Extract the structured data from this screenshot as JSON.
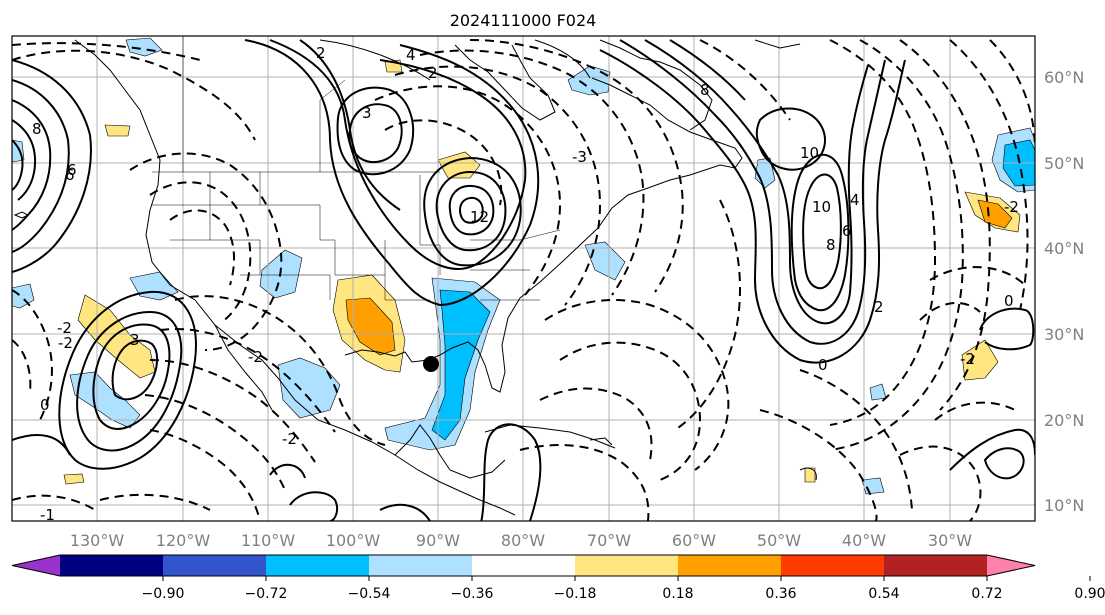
{
  "title": "2024111000 F024",
  "map": {
    "lat_labels": [
      "60°N",
      "50°N",
      "40°N",
      "30°N",
      "20°N",
      "10°N"
    ],
    "lon_labels": [
      "130°W",
      "120°W",
      "110°W",
      "100°W",
      "90°W",
      "80°W",
      "70°W",
      "60°W",
      "50°W",
      "40°W",
      "30°W"
    ],
    "contour_labels": [
      "2",
      "3",
      "4",
      "6",
      "8",
      "10",
      "12",
      "-2",
      "-3",
      "-2",
      "-1",
      "0",
      "3",
      "6",
      "-2",
      "-2",
      "8",
      "2",
      "10",
      "8",
      "6",
      "4",
      "2",
      "0",
      "-2",
      "-2",
      "0"
    ],
    "storm_marker": {
      "symbol": "filled-circle",
      "color": "#000000",
      "lat": 26.5,
      "lon": -90.5
    }
  },
  "colorbar": {
    "tick_labels": [
      "−0.90",
      "−0.72",
      "−0.54",
      "−0.36",
      "−0.18",
      "0.18",
      "0.36",
      "0.54",
      "0.72",
      "0.90"
    ],
    "colors": [
      "#9933cc",
      "#000080",
      "#3355cc",
      "#00bfff",
      "#aee0ff",
      "#ffffff",
      "#ffe680",
      "#ffa000",
      "#ff3c00",
      "#b22222",
      "#ff80aa"
    ],
    "extend": "both"
  },
  "colors": {
    "grid": "#b0b0b0",
    "coast": "#000000",
    "fill_light_blue": "#aee0ff",
    "fill_blue": "#00bfff",
    "fill_yellow": "#ffe680",
    "fill_orange": "#ffa000"
  }
}
